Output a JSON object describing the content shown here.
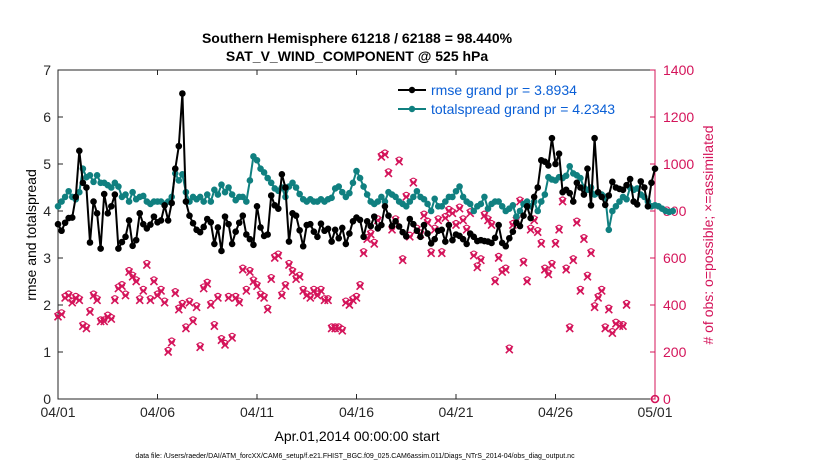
{
  "chart_data": {
    "type": "line",
    "title": "Southern Hemisphere 61218 / 62188 = 98.440%",
    "subtitle": "SAT_V_WIND_COMPONENT @ 525 hPa",
    "xlabel": "Apr.01,2014 00:00:00 start",
    "ylabel_left": "rmse and totalspread",
    "ylabel_right": "# of obs: o=possible; ×=assimilated",
    "x_ticks": [
      "04/01",
      "04/06",
      "04/11",
      "04/16",
      "04/21",
      "04/26",
      "05/01"
    ],
    "x_range": [
      0,
      30
    ],
    "ylim_left": [
      0,
      7
    ],
    "yticks_left": [
      "0",
      "1",
      "2",
      "3",
      "4",
      "5",
      "6",
      "7"
    ],
    "ylim_right": [
      0,
      1400
    ],
    "yticks_right": [
      "0",
      "200",
      "400",
      "600",
      "800",
      "1000",
      "1200",
      "1400"
    ],
    "footnote": "data file: /Users/raeder/DAI/ATM_forcXX/CAM6_setup/f.e21.FHIST_BGC.f09_025.CAM6assim.011/Diags_NTrS_2014-04/obs_diag_output.nc",
    "colors": {
      "rmse": "#000000",
      "spread": "#108080",
      "obs": "#d4145a",
      "legend_text": "#0a5fd6"
    },
    "series": [
      {
        "name": "rmse grand pr = 3.8934",
        "axis": "left",
        "color": "#000000",
        "values": [
          3.72,
          3.58,
          3.75,
          3.85,
          3.86,
          4.3,
          5.28,
          4.6,
          4.5,
          3.33,
          4.2,
          3.95,
          3.2,
          4.36,
          3.95,
          4.1,
          4.35,
          3.2,
          3.34,
          3.45,
          3.8,
          3.26,
          3.38,
          3.95,
          3.72,
          3.63,
          3.71,
          3.88,
          3.76,
          3.8,
          4.12,
          3.8,
          4.17,
          4.9,
          5.38,
          6.5,
          4.2,
          3.9,
          3.74,
          3.6,
          3.55,
          3.66,
          3.83,
          3.76,
          3.3,
          3.65,
          3.15,
          3.88,
          3.72,
          3.3,
          3.56,
          3.75,
          3.9,
          3.5,
          3.4,
          3.28,
          4.1,
          3.65,
          3.47,
          3.5,
          4.33,
          4.12,
          4.05,
          4.78,
          4.5,
          3.35,
          3.95,
          3.9,
          3.59,
          3.25,
          3.7,
          3.72,
          3.56,
          3.45,
          3.73,
          3.58,
          3.62,
          3.35,
          3.6,
          3.42,
          3.64,
          3.3,
          3.52,
          3.78,
          3.86,
          3.81,
          3.45,
          3.78,
          3.68,
          3.88,
          3.63,
          3.7,
          4.1,
          3.9,
          3.68,
          3.78,
          3.67,
          3.55,
          3.46,
          3.83,
          3.72,
          3.58,
          3.45,
          3.7,
          3.52,
          3.31,
          3.4,
          3.58,
          3.6,
          3.35,
          3.7,
          3.38,
          3.5,
          3.47,
          3.4,
          3.3,
          3.52,
          3.45,
          3.36,
          3.38,
          3.36,
          3.35,
          3.32,
          3.43,
          3.7,
          3.32,
          3.25,
          3.42,
          3.56,
          3.75,
          3.68,
          3.9,
          4.1,
          3.85,
          4.3,
          4.5,
          5.08,
          5.05,
          4.97,
          5.55,
          5.0,
          5.22,
          4.4,
          4.45,
          4.38,
          4.2,
          4.6,
          4.5,
          4.35,
          4.9,
          4.12,
          5.55,
          4.4,
          4.3,
          4.13,
          4.33,
          4.62,
          4.5,
          4.47,
          4.45,
          4.55,
          4.68,
          4.2,
          4.14,
          4.63,
          4.5,
          4.1,
          4.6,
          4.9
        ]
      },
      {
        "name": "totalspread grand pr = 4.2343",
        "axis": "left",
        "color": "#108080",
        "values": [
          4.1,
          4.2,
          4.3,
          4.42,
          4.3,
          4.25,
          4.4,
          4.9,
          4.72,
          4.76,
          4.62,
          4.76,
          4.6,
          4.6,
          4.55,
          4.5,
          4.6,
          4.52,
          4.3,
          4.35,
          4.2,
          4.4,
          4.25,
          4.3,
          4.32,
          4.2,
          4.15,
          4.2,
          4.2,
          4.2,
          4.15,
          4.2,
          4.3,
          4.8,
          4.65,
          4.78,
          4.4,
          4.2,
          4.3,
          4.25,
          4.3,
          4.2,
          4.35,
          4.2,
          4.45,
          4.35,
          4.56,
          4.4,
          4.5,
          4.35,
          4.23,
          4.3,
          4.3,
          4.2,
          4.65,
          5.16,
          5.08,
          4.9,
          4.82,
          4.7,
          4.6,
          4.48,
          4.43,
          4.5,
          4.3,
          4.52,
          4.6,
          4.5,
          4.36,
          4.25,
          4.2,
          4.25,
          4.2,
          4.2,
          4.25,
          4.2,
          4.25,
          4.28,
          4.48,
          4.52,
          4.4,
          4.3,
          4.38,
          4.6,
          4.85,
          4.7,
          4.52,
          4.35,
          4.2,
          4.15,
          4.2,
          4.3,
          4.2,
          4.4,
          4.35,
          4.3,
          4.2,
          4.15,
          4.1,
          4.2,
          4.3,
          4.42,
          4.3,
          4.25,
          4.15,
          4.0,
          4.26,
          4.1,
          4.1,
          4.2,
          4.3,
          4.3,
          4.42,
          4.52,
          4.3,
          4.2,
          4.15,
          4.0,
          4.1,
          4.15,
          4.3,
          4.05,
          4.15,
          4.2,
          4.2,
          4.1,
          4.0,
          4.05,
          4.12,
          3.88,
          4.0,
          4.15,
          4.2,
          4.1,
          4.2,
          4.0,
          4.2,
          4.35,
          4.72,
          4.67,
          4.65,
          4.72,
          4.7,
          4.75,
          4.95,
          4.8,
          4.76,
          4.7,
          4.5,
          4.45,
          4.5,
          4.35,
          4.38,
          4.35,
          4.3,
          3.6,
          4.0,
          4.1,
          4.2,
          4.3,
          4.25,
          4.5,
          4.45,
          4.48,
          4.35,
          4.3,
          4.2,
          4.1,
          4.12,
          4.1,
          4.05,
          4.0,
          3.98,
          4.0
        ]
      },
      {
        "name": "obs assimilated",
        "axis": "right",
        "color": "#d4145a",
        "values": [
          350,
          360,
          430,
          440,
          410,
          430,
          420,
          310,
          300,
          370,
          440,
          420,
          330,
          330,
          350,
          340,
          420,
          470,
          480,
          440,
          540,
          520,
          500,
          420,
          460,
          570,
          420,
          500,
          440,
          460,
          410,
          200,
          240,
          450,
          380,
          400,
          300,
          410,
          330,
          390,
          220,
          470,
          490,
          400,
          310,
          430,
          250,
          230,
          430,
          260,
          430,
          410,
          550,
          460,
          540,
          500,
          480,
          440,
          430,
          380,
          510,
          600,
          610,
          440,
          480,
          570,
          540,
          510,
          520,
          460,
          440,
          430,
          460,
          440,
          460,
          420,
          420,
          300,
          300,
          300,
          290,
          410,
          400,
          420,
          430,
          480,
          620,
          680,
          700,
          660,
          760,
          1030,
          1040,
          960,
          720,
          760,
          1010,
          590,
          860,
          690,
          920,
          720,
          700,
          780,
          750,
          620,
          720,
          760,
          620,
          770,
          800,
          790,
          740,
          810,
          760,
          720,
          790,
          610,
          560,
          590,
          780,
          760,
          740,
          500,
          600,
          540,
          550,
          210,
          740,
          760,
          840,
          580,
          500,
          720,
          760,
          710,
          660,
          550,
          530,
          570,
          660,
          720,
          840,
          550,
          300,
          590,
          750,
          460,
          680,
          520,
          620,
          390,
          430,
          460,
          300,
          380,
          280,
          320,
          310,
          310,
          400
        ]
      }
    ]
  }
}
